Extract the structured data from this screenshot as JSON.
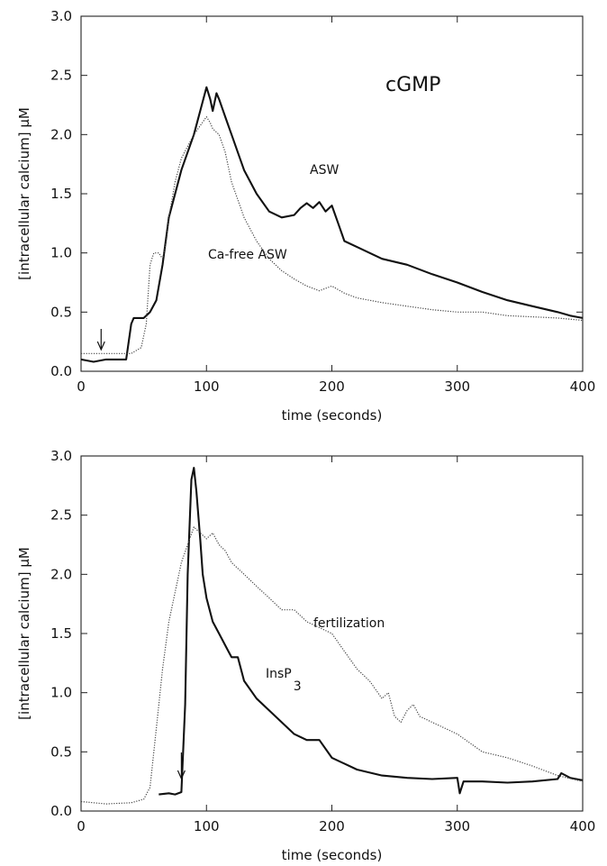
{
  "chart_data": [
    {
      "type": "line",
      "panel_label": "cGMP",
      "xlabel": "time (seconds)",
      "ylabel": "[intracellular calcium] µM",
      "xlim": [
        0,
        400
      ],
      "ylim": [
        0,
        3.0
      ],
      "x_ticks": [
        "0",
        "100",
        "200",
        "300",
        "400"
      ],
      "y_ticks": [
        "0.0",
        "0.5",
        "1.0",
        "1.5",
        "2.0",
        "2.5",
        "3.0"
      ],
      "grid": false,
      "arrow_time": 16,
      "series": [
        {
          "name": "ASW",
          "style": "solid",
          "x": [
            0,
            10,
            20,
            30,
            36,
            40,
            42,
            50,
            55,
            60,
            65,
            70,
            80,
            90,
            95,
            100,
            103,
            105,
            108,
            110,
            115,
            120,
            130,
            140,
            150,
            160,
            170,
            175,
            180,
            185,
            190,
            195,
            200,
            205,
            210,
            220,
            240,
            260,
            280,
            300,
            320,
            340,
            360,
            380,
            390,
            400
          ],
          "values": [
            0.1,
            0.08,
            0.1,
            0.1,
            0.1,
            0.4,
            0.45,
            0.45,
            0.5,
            0.6,
            0.9,
            1.3,
            1.7,
            2.0,
            2.2,
            2.4,
            2.3,
            2.2,
            2.35,
            2.3,
            2.15,
            2.0,
            1.7,
            1.5,
            1.35,
            1.3,
            1.32,
            1.38,
            1.42,
            1.38,
            1.43,
            1.35,
            1.4,
            1.25,
            1.1,
            1.05,
            0.95,
            0.9,
            0.82,
            0.75,
            0.67,
            0.6,
            0.55,
            0.5,
            0.47,
            0.45
          ]
        },
        {
          "name": "Ca-free ASW",
          "style": "dotted",
          "x": [
            0,
            20,
            40,
            48,
            52,
            55,
            58,
            62,
            65,
            68,
            70,
            75,
            80,
            90,
            100,
            103,
            105,
            110,
            115,
            120,
            130,
            140,
            150,
            160,
            170,
            180,
            190,
            200,
            210,
            220,
            240,
            260,
            280,
            300,
            320,
            340,
            360,
            380,
            400
          ],
          "values": [
            0.15,
            0.15,
            0.15,
            0.2,
            0.4,
            0.9,
            1.0,
            1.0,
            0.95,
            1.1,
            1.3,
            1.6,
            1.8,
            2.0,
            2.15,
            2.1,
            2.05,
            2.0,
            1.85,
            1.6,
            1.3,
            1.1,
            0.95,
            0.85,
            0.78,
            0.72,
            0.68,
            0.72,
            0.66,
            0.62,
            0.58,
            0.55,
            0.52,
            0.5,
            0.5,
            0.47,
            0.46,
            0.45,
            0.43
          ]
        }
      ],
      "annotations": [
        "ASW",
        "Ca-free ASW"
      ]
    },
    {
      "type": "line",
      "panel_label": "",
      "xlabel": "time (seconds)",
      "ylabel": "[intracellular calcium] µM",
      "xlim": [
        0,
        400
      ],
      "ylim": [
        0,
        3.0
      ],
      "x_ticks": [
        "0",
        "100",
        "200",
        "300",
        "400"
      ],
      "y_ticks": [
        "0.0",
        "0.5",
        "1.0",
        "1.5",
        "2.0",
        "2.5",
        "3.0"
      ],
      "grid": false,
      "arrow_time": 80,
      "series": [
        {
          "name": "InsP3",
          "style": "solid",
          "x": [
            62,
            70,
            75,
            80,
            83,
            85,
            88,
            90,
            92,
            95,
            97,
            100,
            105,
            110,
            115,
            120,
            125,
            130,
            140,
            150,
            160,
            170,
            180,
            190,
            200,
            220,
            240,
            260,
            280,
            300,
            302,
            305,
            320,
            340,
            360,
            380,
            383,
            390,
            400
          ],
          "values": [
            0.14,
            0.15,
            0.14,
            0.16,
            0.9,
            2.0,
            2.8,
            2.9,
            2.7,
            2.3,
            2.0,
            1.8,
            1.6,
            1.5,
            1.4,
            1.3,
            1.3,
            1.1,
            0.95,
            0.85,
            0.75,
            0.65,
            0.6,
            0.6,
            0.45,
            0.35,
            0.3,
            0.28,
            0.27,
            0.28,
            0.15,
            0.25,
            0.25,
            0.24,
            0.25,
            0.27,
            0.32,
            0.28,
            0.26
          ]
        },
        {
          "name": "fertilization",
          "style": "dotted",
          "x": [
            0,
            20,
            40,
            50,
            55,
            60,
            65,
            70,
            80,
            90,
            100,
            105,
            110,
            115,
            120,
            130,
            140,
            150,
            160,
            170,
            180,
            190,
            200,
            210,
            220,
            230,
            240,
            245,
            250,
            255,
            260,
            265,
            270,
            280,
            300,
            320,
            340,
            360,
            380,
            400
          ],
          "values": [
            0.08,
            0.06,
            0.07,
            0.1,
            0.2,
            0.7,
            1.2,
            1.6,
            2.1,
            2.4,
            2.3,
            2.35,
            2.25,
            2.2,
            2.1,
            2.0,
            1.9,
            1.8,
            1.7,
            1.7,
            1.6,
            1.55,
            1.5,
            1.35,
            1.2,
            1.1,
            0.95,
            1.0,
            0.8,
            0.75,
            0.85,
            0.9,
            0.8,
            0.75,
            0.65,
            0.5,
            0.45,
            0.38,
            0.3,
            0.25
          ]
        }
      ],
      "annotations": [
        "fertilization",
        "InsP",
        "3"
      ]
    }
  ]
}
